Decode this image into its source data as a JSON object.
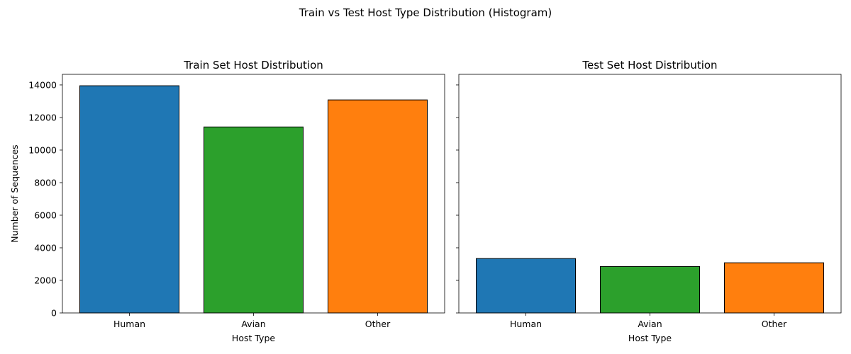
{
  "figure": {
    "suptitle": "Train vs Test Host Type Distribution (Histogram)"
  },
  "chart_data": [
    {
      "type": "bar",
      "title": "Train Set Host Distribution",
      "xlabel": "Host Type",
      "ylabel": "Number of Sequences",
      "categories": [
        "Human",
        "Avian",
        "Other"
      ],
      "values": [
        13950,
        11420,
        13080
      ],
      "colors": [
        "#1f77b4",
        "#2ca02c",
        "#ff7f0e"
      ],
      "edgecolor": "#000000",
      "ylim": [
        0,
        14650
      ],
      "yticks": [
        0,
        2000,
        4000,
        6000,
        8000,
        10000,
        12000,
        14000
      ],
      "grid": false,
      "legend": "none"
    },
    {
      "type": "bar",
      "title": "Test Set Host Distribution",
      "xlabel": "Host Type",
      "ylabel": "",
      "categories": [
        "Human",
        "Avian",
        "Other"
      ],
      "values": [
        3340,
        2850,
        3080
      ],
      "colors": [
        "#1f77b4",
        "#2ca02c",
        "#ff7f0e"
      ],
      "edgecolor": "#000000",
      "ylim": [
        0,
        14650
      ],
      "yticks": [
        0,
        2000,
        4000,
        6000,
        8000,
        10000,
        12000,
        14000
      ],
      "show_ytick_labels": false,
      "grid": false,
      "legend": "none"
    }
  ]
}
